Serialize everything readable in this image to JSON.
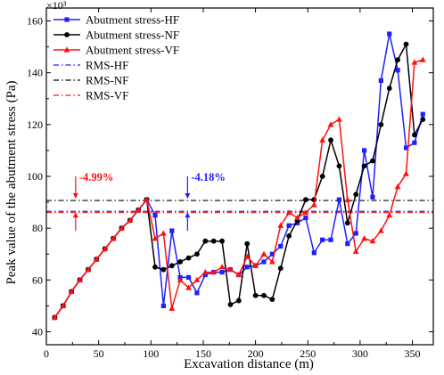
{
  "chart_data": {
    "type": "line",
    "xlabel": "Excavation distance (m)",
    "ylabel": "Peak value of the abutment stress (Pa)",
    "y_multiplier_label": "×10³",
    "xlim": [
      0,
      370
    ],
    "ylim": [
      35,
      165
    ],
    "xticks": [
      0,
      50,
      100,
      150,
      200,
      250,
      300,
      350
    ],
    "yticks": [
      40,
      60,
      80,
      100,
      120,
      140,
      160
    ],
    "legend_position": "top-left",
    "series": [
      {
        "name": "Abutment stress-HF",
        "color": "#1f1fff",
        "marker": "square",
        "x": [
          8,
          16,
          24,
          32,
          40,
          48,
          56,
          64,
          72,
          80,
          88,
          96,
          104,
          112,
          120,
          128,
          136,
          144,
          152,
          160,
          168,
          176,
          184,
          192,
          200,
          208,
          216,
          224,
          232,
          240,
          248,
          256,
          264,
          272,
          280,
          288,
          296,
          304,
          312,
          320,
          328,
          336,
          344,
          352,
          360
        ],
        "y": [
          45.5,
          50,
          55.5,
          60,
          64,
          68,
          72,
          76,
          80,
          83,
          87,
          91,
          85,
          50,
          79,
          61,
          61,
          55,
          62,
          63,
          63,
          64,
          62,
          65,
          65.5,
          67,
          70,
          73,
          81,
          82,
          84,
          70.5,
          75.5,
          75.5,
          91,
          74,
          78,
          110,
          92,
          137,
          155,
          141,
          111,
          113,
          124
        ]
      },
      {
        "name": "Abutment stress-NF",
        "color": "#000000",
        "marker": "circle",
        "x": [
          8,
          16,
          24,
          32,
          40,
          48,
          56,
          64,
          72,
          80,
          88,
          96,
          104,
          112,
          120,
          128,
          136,
          144,
          152,
          160,
          168,
          176,
          184,
          192,
          200,
          208,
          216,
          224,
          232,
          240,
          248,
          256,
          264,
          272,
          280,
          288,
          296,
          304,
          312,
          320,
          328,
          336,
          344,
          352,
          360
        ],
        "y": [
          45.5,
          50,
          55.5,
          60,
          64,
          68,
          72,
          76,
          80,
          83,
          87,
          91,
          65,
          64,
          65.5,
          67,
          68.5,
          70,
          75,
          75,
          75,
          50.5,
          52,
          74,
          54,
          54,
          52.5,
          64.5,
          77,
          83,
          91,
          91,
          100,
          114,
          104,
          82,
          93,
          104,
          106,
          120,
          134,
          145,
          151,
          116,
          122
        ]
      },
      {
        "name": "Abutment stress-VF",
        "color": "#ff1010",
        "marker": "triangle",
        "x": [
          8,
          16,
          24,
          32,
          40,
          48,
          56,
          64,
          72,
          80,
          88,
          96,
          104,
          112,
          120,
          128,
          136,
          144,
          152,
          160,
          168,
          176,
          184,
          192,
          200,
          208,
          216,
          224,
          232,
          240,
          248,
          256,
          264,
          272,
          280,
          288,
          296,
          304,
          312,
          320,
          328,
          336,
          344,
          352,
          360
        ],
        "y": [
          45.5,
          50,
          55.5,
          60,
          64,
          68,
          72,
          76,
          80,
          83,
          87,
          91,
          76,
          78,
          49,
          60,
          57,
          60,
          63,
          63,
          65,
          64,
          62,
          69,
          65.5,
          70,
          67,
          81,
          86,
          84,
          86,
          89,
          114,
          120,
          122,
          91,
          71,
          76,
          75,
          79,
          85,
          96,
          101,
          144,
          145
        ]
      },
      {
        "name": "RMS-HF",
        "color": "#1f1fff",
        "dash": "6,3,1.5,3",
        "x": [
          0,
          370
        ],
        "y": [
          86.5,
          86.5
        ]
      },
      {
        "name": "RMS-NF",
        "color": "#000000",
        "dash": "6,3,1.5,3",
        "x": [
          0,
          370
        ],
        "y": [
          90.7,
          90.7
        ]
      },
      {
        "name": "RMS-VF",
        "color": "#ff1010",
        "dash": "6,3,1.5,3",
        "x": [
          0,
          370
        ],
        "y": [
          86.0,
          86.0
        ]
      }
    ],
    "annotations": [
      {
        "text": "-4.99%",
        "color": "#ff1010",
        "x": 28,
        "arrow_top": 100,
        "arrow_bottom": 86.5
      },
      {
        "text": "-4.18%",
        "color": "#1f1fff",
        "x": 135,
        "arrow_top": 100,
        "arrow_bottom": 86.5
      }
    ]
  }
}
